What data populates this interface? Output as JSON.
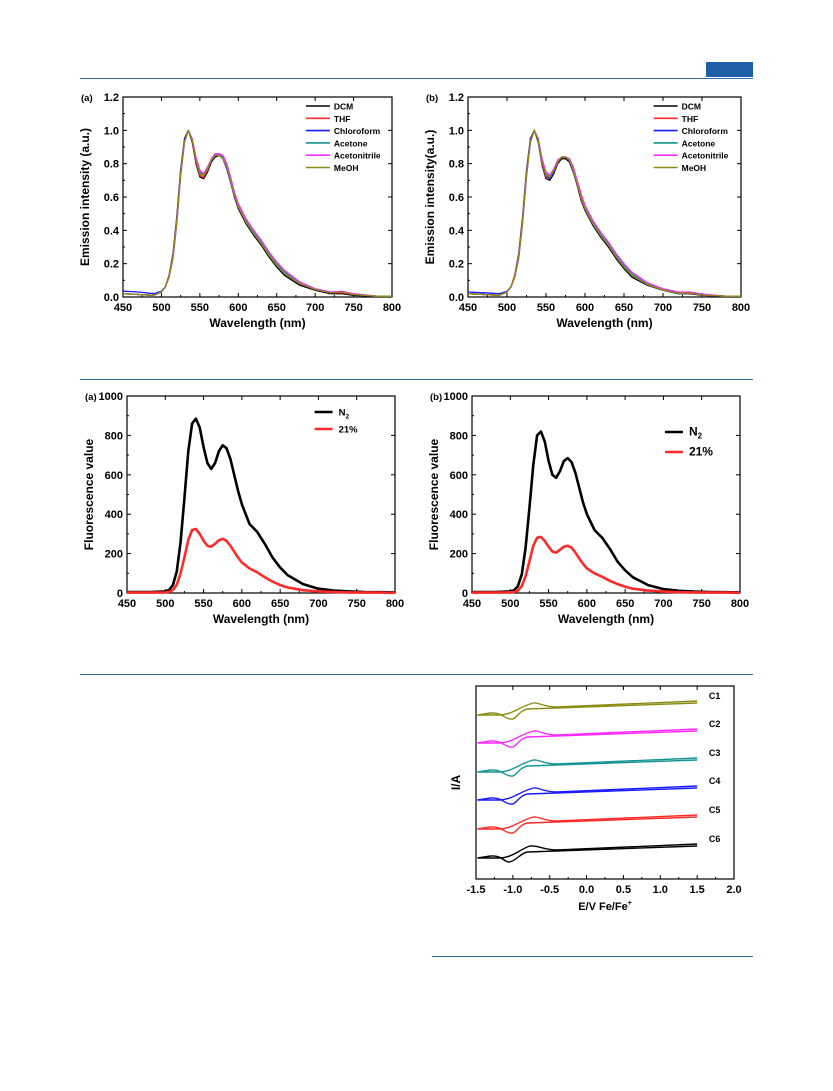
{
  "header": {
    "accent_color": "#1f5fa8"
  },
  "colors": {
    "black": "#000000",
    "red": "#ff2a2a",
    "blue": "#1a1aff",
    "teal": "#149494",
    "magenta": "#ff2aff",
    "olive": "#8c8c14"
  },
  "chart_data": [
    {
      "id": "emission-a",
      "type": "line",
      "panel_label": "(a)",
      "xlabel": "Wavelength (nm)",
      "ylabel": "Emission intensity (a.u.)",
      "xlim": [
        450,
        800
      ],
      "ylim": [
        0,
        1.2
      ],
      "xticks": [
        450,
        500,
        550,
        600,
        650,
        700,
        750,
        800
      ],
      "yticks": [
        0.0,
        0.2,
        0.4,
        0.6,
        0.8,
        1.0,
        1.2
      ],
      "legend_position": "top-right",
      "x": [
        450,
        470,
        490,
        500,
        505,
        510,
        515,
        520,
        525,
        530,
        535,
        540,
        545,
        550,
        555,
        560,
        565,
        570,
        575,
        580,
        585,
        590,
        595,
        600,
        610,
        620,
        630,
        640,
        650,
        660,
        680,
        700,
        720,
        735,
        750,
        780,
        800
      ],
      "series": [
        {
          "name": "DCM",
          "color": "#000000",
          "values": [
            0.02,
            0.015,
            0.01,
            0.03,
            0.06,
            0.13,
            0.26,
            0.48,
            0.76,
            0.95,
            1.0,
            0.93,
            0.8,
            0.72,
            0.71,
            0.75,
            0.81,
            0.84,
            0.85,
            0.83,
            0.77,
            0.69,
            0.6,
            0.53,
            0.44,
            0.37,
            0.31,
            0.24,
            0.18,
            0.13,
            0.07,
            0.04,
            0.02,
            0.02,
            0.01,
            0.005,
            0.005
          ]
        },
        {
          "name": "THF",
          "color": "#ff2a2a",
          "values": [
            0.02,
            0.015,
            0.01,
            0.03,
            0.06,
            0.13,
            0.25,
            0.47,
            0.75,
            0.94,
            1.0,
            0.94,
            0.81,
            0.73,
            0.72,
            0.76,
            0.82,
            0.85,
            0.86,
            0.84,
            0.78,
            0.7,
            0.61,
            0.54,
            0.45,
            0.38,
            0.32,
            0.25,
            0.19,
            0.14,
            0.08,
            0.045,
            0.025,
            0.025,
            0.015,
            0.005,
            0.005
          ]
        },
        {
          "name": "Chloroform",
          "color": "#1a1aff",
          "values": [
            0.035,
            0.03,
            0.02,
            0.035,
            0.06,
            0.12,
            0.24,
            0.46,
            0.74,
            0.94,
            1.0,
            0.94,
            0.82,
            0.74,
            0.73,
            0.77,
            0.82,
            0.85,
            0.85,
            0.83,
            0.77,
            0.69,
            0.61,
            0.54,
            0.45,
            0.38,
            0.32,
            0.25,
            0.19,
            0.14,
            0.08,
            0.045,
            0.025,
            0.03,
            0.015,
            0.005,
            0.005
          ]
        },
        {
          "name": "Acetone",
          "color": "#149494",
          "values": [
            0.02,
            0.015,
            0.01,
            0.03,
            0.06,
            0.12,
            0.24,
            0.45,
            0.73,
            0.93,
            1.0,
            0.95,
            0.83,
            0.75,
            0.73,
            0.77,
            0.82,
            0.85,
            0.86,
            0.84,
            0.79,
            0.71,
            0.62,
            0.55,
            0.46,
            0.39,
            0.33,
            0.26,
            0.2,
            0.15,
            0.085,
            0.05,
            0.03,
            0.03,
            0.015,
            0.005,
            0.005
          ]
        },
        {
          "name": "Acetonitrile",
          "color": "#ff2aff",
          "values": [
            0.02,
            0.015,
            0.01,
            0.03,
            0.06,
            0.12,
            0.23,
            0.44,
            0.72,
            0.93,
            1.0,
            0.95,
            0.84,
            0.76,
            0.74,
            0.78,
            0.83,
            0.86,
            0.86,
            0.85,
            0.8,
            0.72,
            0.63,
            0.56,
            0.47,
            0.4,
            0.34,
            0.27,
            0.21,
            0.16,
            0.09,
            0.05,
            0.03,
            0.035,
            0.02,
            0.005,
            0.005
          ]
        },
        {
          "name": "MeOH",
          "color": "#8c8c14",
          "values": [
            0.02,
            0.015,
            0.01,
            0.03,
            0.06,
            0.12,
            0.24,
            0.45,
            0.73,
            0.93,
            1.0,
            0.94,
            0.82,
            0.74,
            0.73,
            0.77,
            0.82,
            0.85,
            0.85,
            0.83,
            0.78,
            0.7,
            0.61,
            0.54,
            0.45,
            0.38,
            0.32,
            0.25,
            0.19,
            0.14,
            0.08,
            0.045,
            0.025,
            0.03,
            0.015,
            0.005,
            0.005
          ]
        }
      ]
    },
    {
      "id": "emission-b",
      "type": "line",
      "panel_label": "(b)",
      "xlabel": "Wavelength (nm)",
      "ylabel": "Emission intensity(a.u.)",
      "xlim": [
        450,
        800
      ],
      "ylim": [
        0,
        1.2
      ],
      "xticks": [
        450,
        500,
        550,
        600,
        650,
        700,
        750,
        800
      ],
      "yticks": [
        0.0,
        0.2,
        0.4,
        0.6,
        0.8,
        1.0,
        1.2
      ],
      "legend_position": "top-right",
      "x": [
        450,
        470,
        490,
        500,
        505,
        510,
        515,
        520,
        525,
        530,
        535,
        540,
        545,
        550,
        555,
        560,
        565,
        570,
        575,
        580,
        585,
        590,
        595,
        600,
        610,
        620,
        630,
        640,
        650,
        660,
        680,
        700,
        720,
        735,
        750,
        780,
        800
      ],
      "series": [
        {
          "name": "DCM",
          "color": "#000000",
          "values": [
            0.02,
            0.015,
            0.01,
            0.03,
            0.06,
            0.13,
            0.26,
            0.48,
            0.76,
            0.95,
            1.0,
            0.93,
            0.79,
            0.71,
            0.7,
            0.74,
            0.8,
            0.83,
            0.83,
            0.81,
            0.75,
            0.67,
            0.58,
            0.52,
            0.43,
            0.36,
            0.3,
            0.23,
            0.17,
            0.12,
            0.07,
            0.04,
            0.02,
            0.02,
            0.01,
            0.005,
            0.005
          ]
        },
        {
          "name": "THF",
          "color": "#ff2a2a",
          "values": [
            0.02,
            0.015,
            0.01,
            0.03,
            0.06,
            0.13,
            0.25,
            0.47,
            0.75,
            0.94,
            1.0,
            0.94,
            0.8,
            0.72,
            0.71,
            0.75,
            0.81,
            0.84,
            0.84,
            0.82,
            0.76,
            0.68,
            0.59,
            0.53,
            0.44,
            0.37,
            0.31,
            0.24,
            0.18,
            0.13,
            0.075,
            0.042,
            0.022,
            0.022,
            0.012,
            0.005,
            0.005
          ]
        },
        {
          "name": "Chloroform",
          "color": "#1a1aff",
          "values": [
            0.03,
            0.025,
            0.02,
            0.035,
            0.06,
            0.12,
            0.24,
            0.46,
            0.74,
            0.94,
            1.0,
            0.94,
            0.81,
            0.73,
            0.71,
            0.75,
            0.81,
            0.84,
            0.84,
            0.82,
            0.76,
            0.68,
            0.6,
            0.53,
            0.44,
            0.37,
            0.31,
            0.24,
            0.18,
            0.13,
            0.075,
            0.042,
            0.022,
            0.025,
            0.012,
            0.005,
            0.005
          ]
        },
        {
          "name": "Acetone",
          "color": "#149494",
          "values": [
            0.02,
            0.015,
            0.01,
            0.03,
            0.06,
            0.12,
            0.24,
            0.45,
            0.73,
            0.93,
            1.0,
            0.95,
            0.82,
            0.74,
            0.72,
            0.76,
            0.82,
            0.84,
            0.84,
            0.83,
            0.77,
            0.69,
            0.61,
            0.54,
            0.45,
            0.38,
            0.32,
            0.25,
            0.19,
            0.14,
            0.08,
            0.046,
            0.026,
            0.028,
            0.014,
            0.005,
            0.005
          ]
        },
        {
          "name": "Acetonitrile",
          "color": "#ff2aff",
          "values": [
            0.02,
            0.015,
            0.01,
            0.03,
            0.06,
            0.12,
            0.23,
            0.44,
            0.72,
            0.93,
            1.0,
            0.95,
            0.83,
            0.75,
            0.73,
            0.77,
            0.82,
            0.84,
            0.84,
            0.83,
            0.78,
            0.7,
            0.62,
            0.55,
            0.46,
            0.39,
            0.33,
            0.26,
            0.2,
            0.15,
            0.085,
            0.05,
            0.03,
            0.03,
            0.018,
            0.005,
            0.005
          ]
        },
        {
          "name": "MeOH",
          "color": "#8c8c14",
          "values": [
            0.02,
            0.015,
            0.01,
            0.03,
            0.06,
            0.12,
            0.24,
            0.45,
            0.73,
            0.93,
            1.0,
            0.94,
            0.81,
            0.73,
            0.72,
            0.76,
            0.81,
            0.84,
            0.84,
            0.82,
            0.76,
            0.68,
            0.6,
            0.53,
            0.44,
            0.37,
            0.31,
            0.24,
            0.18,
            0.13,
            0.075,
            0.042,
            0.022,
            0.025,
            0.012,
            0.005,
            0.005
          ]
        }
      ]
    },
    {
      "id": "fluorescence-a",
      "type": "line",
      "panel_label": "(a)",
      "xlabel": "Wavelength (nm)",
      "ylabel": "Fluorescence value",
      "xlim": [
        450,
        800
      ],
      "ylim": [
        0,
        1000
      ],
      "xticks": [
        450,
        500,
        550,
        600,
        650,
        700,
        750,
        800
      ],
      "yticks": [
        0,
        200,
        400,
        600,
        800,
        1000
      ],
      "legend_position": "top-right",
      "x": [
        450,
        480,
        500,
        505,
        510,
        515,
        520,
        525,
        530,
        535,
        540,
        545,
        550,
        555,
        560,
        565,
        570,
        575,
        580,
        585,
        590,
        595,
        600,
        610,
        620,
        630,
        640,
        650,
        660,
        680,
        700,
        720,
        740,
        760,
        780,
        800
      ],
      "series": [
        {
          "name": "N",
          "name_sub": "2",
          "color": "#000000",
          "values": [
            5,
            5,
            8,
            15,
            40,
            110,
            260,
            480,
            720,
            860,
            885,
            840,
            740,
            660,
            630,
            660,
            720,
            750,
            735,
            680,
            600,
            520,
            450,
            350,
            310,
            250,
            180,
            130,
            90,
            45,
            22,
            12,
            8,
            5,
            4,
            3
          ]
        },
        {
          "name": "21%",
          "color": "#ff2a2a",
          "values": [
            2,
            2,
            3,
            6,
            15,
            42,
            100,
            180,
            270,
            320,
            325,
            300,
            265,
            240,
            235,
            250,
            268,
            275,
            265,
            240,
            210,
            180,
            155,
            125,
            105,
            80,
            58,
            40,
            28,
            14,
            8,
            5,
            3,
            2,
            2,
            1
          ]
        }
      ]
    },
    {
      "id": "fluorescence-b",
      "type": "line",
      "panel_label": "(b)",
      "xlabel": "Wavelength (nm)",
      "ylabel": "Fluorescence value",
      "xlim": [
        450,
        800
      ],
      "ylim": [
        0,
        1000
      ],
      "xticks": [
        450,
        500,
        550,
        600,
        650,
        700,
        750,
        800
      ],
      "yticks": [
        0,
        200,
        400,
        600,
        800,
        1000
      ],
      "legend_position": "top-right",
      "x": [
        450,
        480,
        500,
        505,
        510,
        515,
        520,
        525,
        530,
        535,
        540,
        545,
        550,
        555,
        560,
        565,
        570,
        575,
        580,
        585,
        590,
        595,
        600,
        610,
        620,
        630,
        640,
        650,
        660,
        680,
        700,
        720,
        740,
        760,
        780,
        800
      ],
      "series": [
        {
          "name": "N",
          "name_sub": "2",
          "color": "#000000",
          "values": [
            5,
            5,
            8,
            14,
            35,
            95,
            230,
            430,
            650,
            800,
            820,
            770,
            670,
            600,
            585,
            620,
            670,
            685,
            665,
            610,
            535,
            460,
            400,
            320,
            280,
            225,
            160,
            115,
            80,
            40,
            20,
            11,
            7,
            5,
            4,
            3
          ]
        },
        {
          "name": "21%",
          "color": "#ff2a2a",
          "values": [
            2,
            2,
            3,
            5,
            12,
            35,
            85,
            160,
            240,
            280,
            285,
            265,
            235,
            210,
            205,
            220,
            235,
            240,
            230,
            205,
            175,
            148,
            125,
            100,
            82,
            62,
            45,
            32,
            22,
            12,
            7,
            4,
            3,
            2,
            2,
            1
          ]
        }
      ]
    },
    {
      "id": "cv",
      "type": "line",
      "xlabel": "E/V Fe/Fe",
      "xlabel_sup": "+",
      "ylabel": "I/A",
      "xlim": [
        -1.5,
        2.0
      ],
      "xticks": [
        -1.5,
        -1.0,
        -0.5,
        0.0,
        0.5,
        1.0,
        1.5,
        2.0
      ],
      "xtick_labels": [
        "-1.5",
        "-1.0",
        "-0.5",
        "0.0",
        "0.5",
        "1.0",
        "1.5",
        "2.0"
      ],
      "series": [
        {
          "name": "C1",
          "color": "#8c8c14"
        },
        {
          "name": "C2",
          "color": "#ff2aff"
        },
        {
          "name": "C3",
          "color": "#149494"
        },
        {
          "name": "C4",
          "color": "#1a1aff"
        },
        {
          "name": "C5",
          "color": "#ff2a2a"
        },
        {
          "name": "C6",
          "color": "#000000"
        }
      ]
    }
  ]
}
